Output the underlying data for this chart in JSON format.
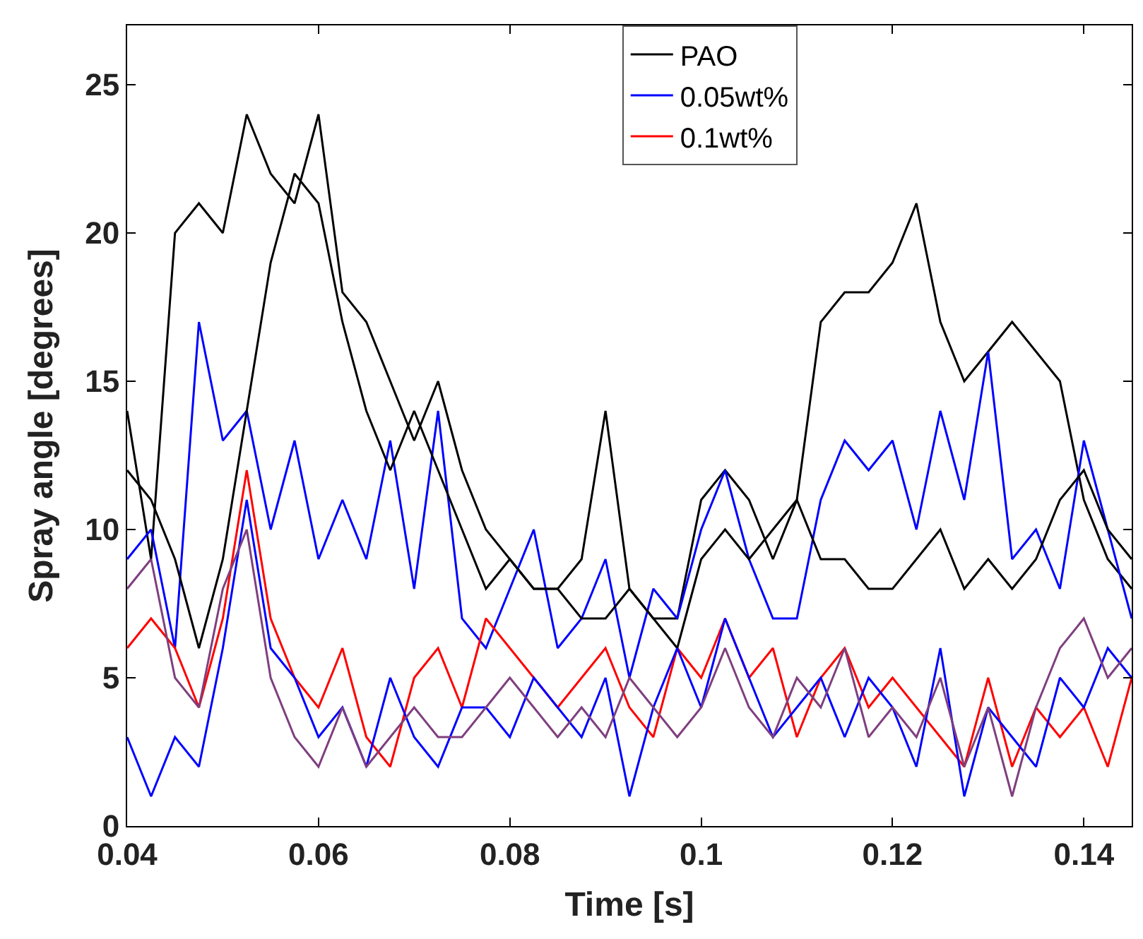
{
  "chart_data": {
    "type": "line",
    "xlabel": "Time [s]",
    "ylabel": "Spray angle [degrees]",
    "x": [
      0.04,
      0.0425,
      0.045,
      0.0475,
      0.05,
      0.0525,
      0.055,
      0.0575,
      0.06,
      0.0625,
      0.065,
      0.0675,
      0.07,
      0.0725,
      0.075,
      0.0775,
      0.08,
      0.0825,
      0.085,
      0.0875,
      0.09,
      0.0925,
      0.095,
      0.0975,
      0.1,
      0.1025,
      0.105,
      0.1075,
      0.11,
      0.1125,
      0.115,
      0.1175,
      0.12,
      0.1225,
      0.125,
      0.1275,
      0.13,
      0.1325,
      0.135,
      0.1375,
      0.14,
      0.1425,
      0.145
    ],
    "series": [
      {
        "name": "PAO",
        "color": "#000000",
        "values": [
          14,
          9,
          20,
          21,
          20,
          24,
          22,
          21,
          24,
          18,
          17,
          15,
          13,
          15,
          12,
          10,
          9,
          8,
          8,
          9,
          14,
          8,
          7,
          7,
          11,
          12,
          11,
          9,
          11,
          17,
          18,
          18,
          19,
          21,
          17,
          15,
          16,
          17,
          16,
          15,
          11,
          9,
          8
        ]
      },
      {
        "name": "0.05wt%",
        "color": "#0000ff",
        "values": [
          9,
          10,
          6,
          17,
          13,
          14,
          10,
          13,
          9,
          11,
          9,
          13,
          8,
          14,
          7,
          6,
          8,
          10,
          6,
          7,
          9,
          5,
          8,
          7,
          10,
          12,
          9,
          7,
          7,
          11,
          13,
          12,
          13,
          10,
          14,
          11,
          16,
          9,
          10,
          8,
          13,
          10,
          7
        ]
      },
      {
        "name": "0.1wt%",
        "color": "#ff0000",
        "values": [
          6,
          7,
          6,
          4,
          7,
          12,
          7,
          5,
          4,
          6,
          3,
          2,
          5,
          6,
          4,
          7,
          6,
          5,
          4,
          5,
          6,
          4,
          3,
          6,
          5,
          7,
          5,
          6,
          3,
          5,
          6,
          4,
          5,
          4,
          3,
          2,
          5,
          2,
          4,
          3,
          4,
          2,
          5
        ]
      },
      {
        "color": "#000000",
        "values": [
          12,
          11,
          9,
          6,
          9,
          14,
          19,
          22,
          21,
          17,
          14,
          12,
          14,
          12,
          10,
          8,
          9,
          8,
          8,
          7,
          7,
          8,
          7,
          6,
          9,
          10,
          9,
          10,
          11,
          9,
          9,
          8,
          8,
          9,
          10,
          8,
          9,
          8,
          9,
          11,
          12,
          10,
          9
        ]
      },
      {
        "color": "#0000ff",
        "values": [
          3,
          1,
          3,
          2,
          6,
          11,
          6,
          5,
          3,
          4,
          2,
          5,
          3,
          2,
          4,
          4,
          3,
          5,
          4,
          3,
          5,
          1,
          4,
          6,
          4,
          7,
          5,
          3,
          4,
          5,
          3,
          5,
          4,
          2,
          6,
          1,
          4,
          3,
          2,
          5,
          4,
          6,
          5
        ]
      },
      {
        "color": "#7f3f7f",
        "values": [
          8,
          9,
          5,
          4,
          8,
          10,
          5,
          3,
          2,
          4,
          2,
          3,
          4,
          3,
          3,
          4,
          5,
          4,
          3,
          4,
          3,
          5,
          4,
          3,
          4,
          6,
          4,
          3,
          5,
          4,
          6,
          3,
          4,
          3,
          5,
          2,
          4,
          1,
          4,
          6,
          7,
          5,
          6
        ]
      }
    ],
    "xlim": [
      0.04,
      0.145
    ],
    "xticks": [
      0.04,
      0.06,
      0.08,
      0.1,
      0.12,
      0.14
    ],
    "ylim": [
      0,
      27
    ],
    "yticks": [
      0,
      5,
      10,
      15,
      20,
      25
    ],
    "legend": "top",
    "line_style": "solid",
    "marker": "none"
  }
}
